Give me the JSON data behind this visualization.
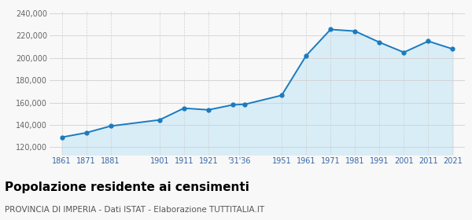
{
  "years": [
    1861,
    1871,
    1881,
    1901,
    1911,
    1921,
    1931,
    1936,
    1951,
    1961,
    1971,
    1981,
    1991,
    2001,
    2011,
    2021
  ],
  "population": [
    129000,
    133000,
    139000,
    144500,
    155000,
    153500,
    158000,
    158500,
    166500,
    202000,
    225500,
    224000,
    214000,
    205000,
    215000,
    208000
  ],
  "y_ticks": [
    120000,
    140000,
    160000,
    180000,
    200000,
    220000,
    240000
  ],
  "y_tick_labels": [
    "120,000",
    "140,000",
    "160,000",
    "180,000",
    "200,000",
    "220,000",
    "240,000"
  ],
  "x_tick_positions": [
    1861,
    1871,
    1881,
    1901,
    1911,
    1921,
    1933.5,
    1951,
    1961,
    1971,
    1981,
    1991,
    2001,
    2011,
    2021
  ],
  "x_tick_labels": [
    "1861",
    "1871",
    "1881",
    "1901",
    "1911",
    "1921",
    "'31'36",
    "1951",
    "1961",
    "1971",
    "1981",
    "1991",
    "2001",
    "2011",
    "2021"
  ],
  "line_color": "#1a7bbf",
  "fill_color": "#d9edf7",
  "marker_color": "#1a7bbf",
  "grid_color": "#d0d0d0",
  "title": "Popolazione residente ai censimenti",
  "subtitle": "PROVINCIA DI IMPERIA - Dati ISTAT - Elaborazione TUTTITALIA.IT",
  "title_fontsize": 11,
  "subtitle_fontsize": 7.5,
  "bg_color": "#f8f8f8",
  "ylim": [
    113000,
    243000
  ],
  "xlim": [
    1856,
    2026
  ]
}
